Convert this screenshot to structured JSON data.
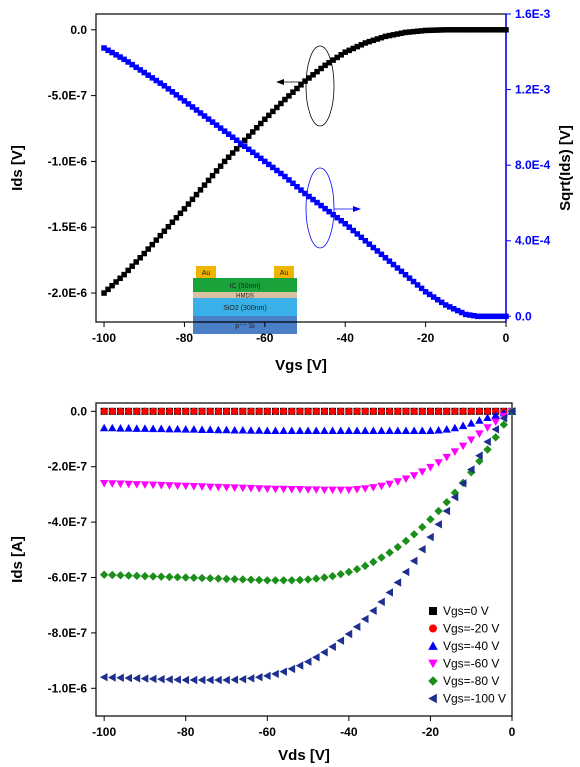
{
  "chart_data": [
    {
      "type": "scatter",
      "xlabel": "Vgs [V]",
      "ylabel": "Ids [V]",
      "y2label": "Sqrt(Ids) [V]",
      "xlim": [
        -102,
        0
      ],
      "ylim": [
        -2.22e-06,
        1.2e-07
      ],
      "y2lim": [
        -3e-05,
        0.0016
      ],
      "x_ticks": [
        -100,
        -80,
        -60,
        -40,
        -20,
        0
      ],
      "x_tick_labels": [
        "-100",
        "-80",
        "-60",
        "-40",
        "-20",
        "0"
      ],
      "y_ticks": [
        0,
        -5e-07,
        -1e-06,
        -1.5e-06,
        -2e-06
      ],
      "y_tick_labels": [
        "0.0",
        "-5.0E-7",
        "-1.0E-6",
        "-1.5E-6",
        "-2.0E-6"
      ],
      "y2_ticks": [
        0,
        0.0004,
        0.0008,
        0.0012,
        0.0016
      ],
      "y2_tick_labels": [
        "0.0",
        "4.0E-4",
        "8.0E-4",
        "1.2E-3",
        "1.6E-3"
      ],
      "right_axis_color": "#0000ff",
      "series": [
        {
          "color": "#000000",
          "marker": "square",
          "axis": "left",
          "x_start": -100,
          "x_end": 0,
          "x_step": 1,
          "points": [
            [
              -100,
              -2e-06
            ],
            [
              -95,
              -1.86e-06
            ],
            [
              -90,
              -1.7e-06
            ],
            [
              -85,
              -1.53e-06
            ],
            [
              -80,
              -1.36e-06
            ],
            [
              -75,
              -1.18e-06
            ],
            [
              -70,
              -1e-06
            ],
            [
              -65,
              -8.4e-07
            ],
            [
              -60,
              -6.8e-07
            ],
            [
              -55,
              -5.3e-07
            ],
            [
              -50,
              -3.9e-07
            ],
            [
              -45,
              -2.7e-07
            ],
            [
              -40,
              -1.7e-07
            ],
            [
              -35,
              -1e-07
            ],
            [
              -30,
              -5e-08
            ],
            [
              -25,
              -2e-08
            ],
            [
              -20,
              -5e-09
            ],
            [
              -15,
              0
            ],
            [
              -10,
              0
            ],
            [
              -5,
              0
            ],
            [
              0,
              0
            ]
          ]
        },
        {
          "color": "#0000ff",
          "marker": "square",
          "axis": "right",
          "x_start": -100,
          "x_end": 0,
          "x_step": 1,
          "points": [
            [
              -100,
              0.00142
            ],
            [
              -95,
              0.00136
            ],
            [
              -90,
              0.00129
            ],
            [
              -85,
              0.00122
            ],
            [
              -80,
              0.00114
            ],
            [
              -75,
              0.00106
            ],
            [
              -70,
              0.00098
            ],
            [
              -65,
              0.0009
            ],
            [
              -60,
              0.00082
            ],
            [
              -55,
              0.00074
            ],
            [
              -50,
              0.00065
            ],
            [
              -45,
              0.00057
            ],
            [
              -40,
              0.00049
            ],
            [
              -35,
              0.0004
            ],
            [
              -30,
              0.00031
            ],
            [
              -25,
              0.00022
            ],
            [
              -20,
              0.00013
            ],
            [
              -15,
              6e-05
            ],
            [
              -10,
              1e-05
            ],
            [
              -7,
              0.0
            ],
            [
              0,
              0.0
            ]
          ]
        }
      ],
      "annotations": {
        "left_arrow_color": "#000000",
        "right_arrow_color": "#0000ff"
      },
      "inset": {
        "layers": [
          {
            "label": "Au",
            "color": "#f0b400"
          },
          {
            "label": "IC (50nm)",
            "color": "#1aa33a"
          },
          {
            "label": "HMDS",
            "color": "#d8c0a0"
          },
          {
            "label": "SiO2 (300nm)",
            "color": "#3ab0e8"
          },
          {
            "label": "p⁺⁺ Si",
            "color": "#4a7fc6"
          }
        ],
        "left_gold": "Au",
        "right_gold": "Au"
      }
    },
    {
      "type": "scatter",
      "xlabel": "Vds [V]",
      "ylabel": "Ids [A]",
      "xlim": [
        -102,
        0
      ],
      "ylim": [
        -1.1e-06,
        3e-08
      ],
      "x_ticks": [
        -100,
        -80,
        -60,
        -40,
        -20,
        0
      ],
      "x_tick_labels": [
        "-100",
        "-80",
        "-60",
        "-40",
        "-20",
        "0"
      ],
      "y_ticks": [
        0,
        -2e-07,
        -4e-07,
        -6e-07,
        -8e-07,
        -1e-06
      ],
      "y_tick_labels": [
        "0.0",
        "-2.0E-7",
        "-4.0E-7",
        "-6.0E-7",
        "-8.0E-7",
        "-1.0E-6"
      ],
      "legend_position": "bottom-right",
      "x": [
        -100,
        -98,
        -96,
        -94,
        -92,
        -90,
        -88,
        -86,
        -84,
        -82,
        -80,
        -78,
        -76,
        -74,
        -72,
        -70,
        -68,
        -66,
        -64,
        -62,
        -60,
        -58,
        -56,
        -54,
        -52,
        -50,
        -48,
        -46,
        -44,
        -42,
        -40,
        -38,
        -36,
        -34,
        -32,
        -30,
        -28,
        -26,
        -24,
        -22,
        -20,
        -18,
        -16,
        -14,
        -12,
        -10,
        -8,
        -6,
        -4,
        -2,
        0
      ],
      "series": [
        {
          "name": "Vgs=0 V",
          "color": "#000000",
          "marker": "square",
          "values": [
            0,
            0,
            0,
            0,
            0,
            0,
            0,
            0,
            0,
            0,
            0,
            0,
            0,
            0,
            0,
            0,
            0,
            0,
            0,
            0,
            0,
            0,
            0,
            0,
            0,
            0,
            0,
            0,
            0,
            0,
            0,
            0,
            0,
            0,
            0,
            0,
            0,
            0,
            0,
            0,
            0,
            0,
            0,
            0,
            0,
            0,
            0,
            0,
            0,
            0,
            0
          ]
        },
        {
          "name": "Vgs=-20 V",
          "color": "#ff0000",
          "marker": "circle",
          "values": [
            0,
            0,
            0,
            0,
            0,
            0,
            0,
            0,
            0,
            0,
            0,
            0,
            0,
            0,
            0,
            0,
            0,
            0,
            0,
            0,
            0,
            0,
            0,
            0,
            0,
            0,
            0,
            0,
            0,
            0,
            0,
            0,
            0,
            0,
            0,
            0,
            0,
            0,
            0,
            0,
            0,
            0,
            0,
            0,
            0,
            0,
            0,
            0,
            0,
            0,
            0
          ]
        },
        {
          "name": "Vgs=-40 V",
          "color": "#0000ff",
          "marker": "triangle-up",
          "values": [
            -6e-08,
            -6e-08,
            -6.1e-08,
            -6.1e-08,
            -6.2e-08,
            -6.2e-08,
            -6.3e-08,
            -6.3e-08,
            -6.4e-08,
            -6.4e-08,
            -6.5e-08,
            -6.5e-08,
            -6.6e-08,
            -6.6e-08,
            -6.7e-08,
            -6.7e-08,
            -6.8e-08,
            -6.8e-08,
            -6.9e-08,
            -6.9e-08,
            -7e-08,
            -7e-08,
            -7e-08,
            -7e-08,
            -7e-08,
            -7e-08,
            -7e-08,
            -7e-08,
            -7e-08,
            -7e-08,
            -7e-08,
            -7e-08,
            -7e-08,
            -7e-08,
            -7e-08,
            -7e-08,
            -7e-08,
            -7e-08,
            -7e-08,
            -7e-08,
            -7e-08,
            -6.8e-08,
            -6.5e-08,
            -6e-08,
            -5.2e-08,
            -4.3e-08,
            -3.3e-08,
            -2.3e-08,
            -1.4e-08,
            -6e-09,
            0
          ]
        },
        {
          "name": "Vgs=-60 V",
          "color": "#ff00ff",
          "marker": "triangle-down",
          "values": [
            -2.6e-07,
            -2.61e-07,
            -2.62e-07,
            -2.63e-07,
            -2.64e-07,
            -2.65e-07,
            -2.66e-07,
            -2.67e-07,
            -2.68e-07,
            -2.69e-07,
            -2.7e-07,
            -2.71e-07,
            -2.72e-07,
            -2.73e-07,
            -2.74e-07,
            -2.75e-07,
            -2.76e-07,
            -2.77e-07,
            -2.78e-07,
            -2.79e-07,
            -2.8e-07,
            -2.81e-07,
            -2.81e-07,
            -2.82e-07,
            -2.82e-07,
            -2.83e-07,
            -2.83e-07,
            -2.84e-07,
            -2.84e-07,
            -2.84e-07,
            -2.84e-07,
            -2.82e-07,
            -2.79e-07,
            -2.75e-07,
            -2.7e-07,
            -2.63e-07,
            -2.54e-07,
            -2.44e-07,
            -2.32e-07,
            -2.18e-07,
            -2.02e-07,
            -1.85e-07,
            -1.66e-07,
            -1.46e-07,
            -1.25e-07,
            -1.03e-07,
            -8.1e-08,
            -5.9e-08,
            -3.8e-08,
            -1.8e-08,
            0
          ]
        },
        {
          "name": "Vgs=-80 V",
          "color": "#1a8f1a",
          "marker": "diamond",
          "values": [
            -5.9e-07,
            -5.91e-07,
            -5.92e-07,
            -5.93e-07,
            -5.94e-07,
            -5.95e-07,
            -5.96e-07,
            -5.97e-07,
            -5.98e-07,
            -5.99e-07,
            -6e-07,
            -6.01e-07,
            -6.02e-07,
            -6.03e-07,
            -6.04e-07,
            -6.05e-07,
            -6.06e-07,
            -6.07e-07,
            -6.08e-07,
            -6.09e-07,
            -6.1e-07,
            -6.1e-07,
            -6.1e-07,
            -6.1e-07,
            -6.09e-07,
            -6.07e-07,
            -6.04e-07,
            -6e-07,
            -5.95e-07,
            -5.88e-07,
            -5.8e-07,
            -5.7e-07,
            -5.58e-07,
            -5.44e-07,
            -5.28e-07,
            -5.1e-07,
            -4.9e-07,
            -4.68e-07,
            -4.44e-07,
            -4.18e-07,
            -3.9e-07,
            -3.6e-07,
            -3.28e-07,
            -2.94e-07,
            -2.58e-07,
            -2.2e-07,
            -1.8e-07,
            -1.38e-07,
            -9.4e-08,
            -4.8e-08,
            0
          ]
        },
        {
          "name": "Vgs=-100 V",
          "color": "#1f2f8f",
          "marker": "triangle-left",
          "values": [
            -9.6e-07,
            -9.61e-07,
            -9.62e-07,
            -9.63e-07,
            -9.64e-07,
            -9.65e-07,
            -9.66e-07,
            -9.67e-07,
            -9.68e-07,
            -9.69e-07,
            -9.7e-07,
            -9.7e-07,
            -9.7e-07,
            -9.7e-07,
            -9.7e-07,
            -9.7e-07,
            -9.69e-07,
            -9.67e-07,
            -9.64e-07,
            -9.6e-07,
            -9.55e-07,
            -9.48e-07,
            -9.4e-07,
            -9.3e-07,
            -9.18e-07,
            -9.04e-07,
            -8.88e-07,
            -8.7e-07,
            -8.5e-07,
            -8.28e-07,
            -8.04e-07,
            -7.78e-07,
            -7.5e-07,
            -7.2e-07,
            -6.88e-07,
            -6.54e-07,
            -6.18e-07,
            -5.8e-07,
            -5.4e-07,
            -4.98e-07,
            -4.54e-07,
            -4.08e-07,
            -3.6e-07,
            -3.1e-07,
            -2.6e-07,
            -2.1e-07,
            -1.6e-07,
            -1.1e-07,
            -6.5e-08,
            -2.5e-08,
            0
          ]
        }
      ]
    }
  ]
}
